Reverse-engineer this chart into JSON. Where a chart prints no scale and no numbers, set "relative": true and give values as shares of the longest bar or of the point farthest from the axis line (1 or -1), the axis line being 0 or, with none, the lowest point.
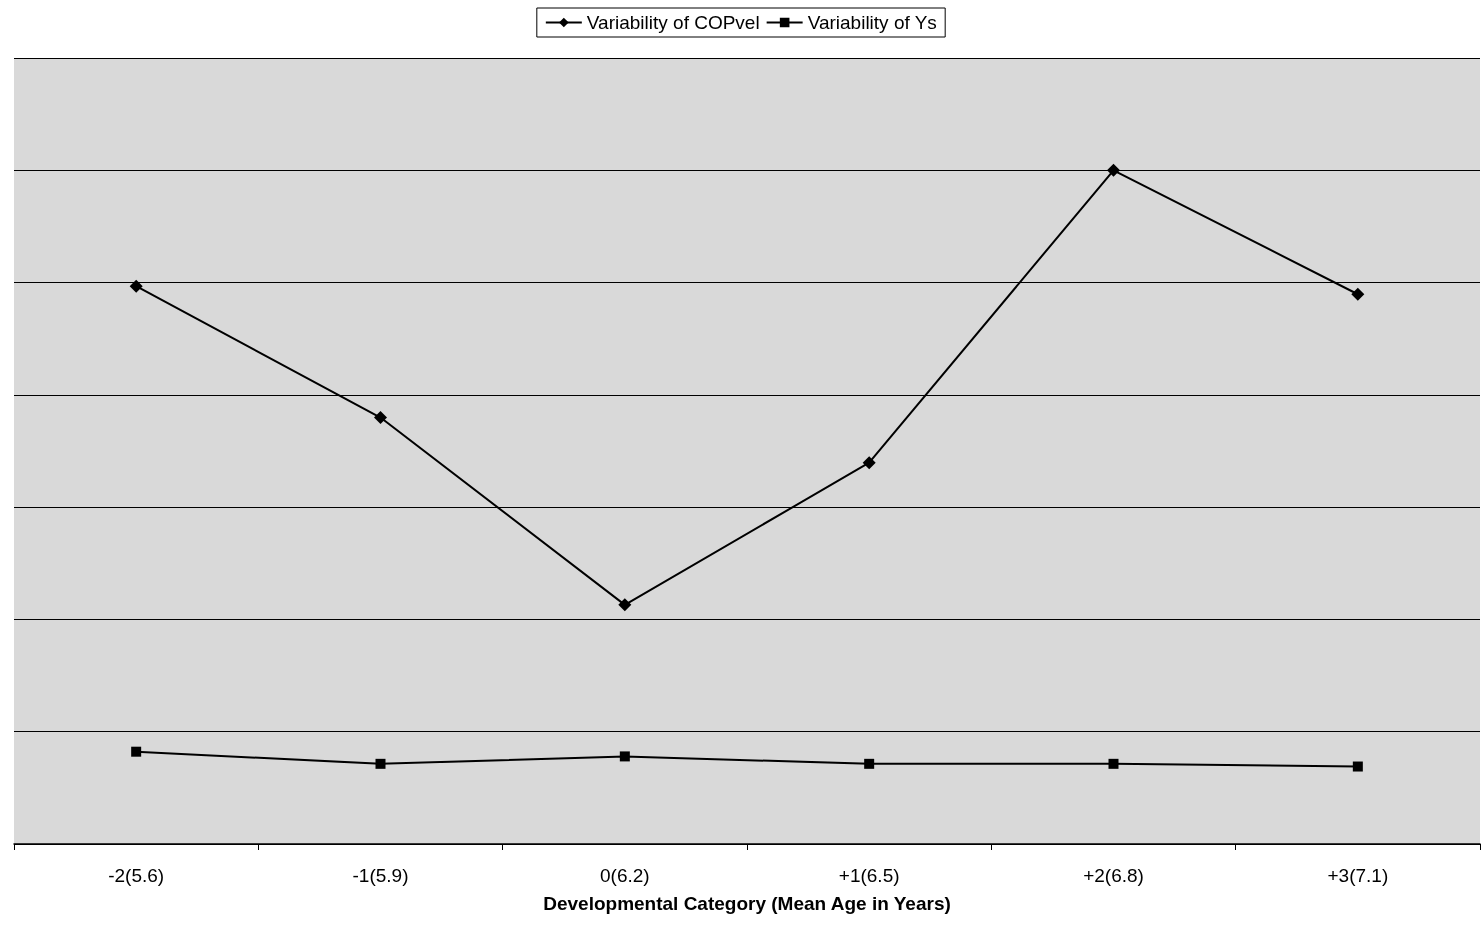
{
  "chart_data": {
    "type": "line",
    "relative": true,
    "xlabel": "Developmental Category (Mean Age in Years)",
    "categories": [
      "-2(5.6)",
      "-1(5.9)",
      "0(6.2)",
      "+1(6.5)",
      "+2(6.8)",
      "+3(7.1)"
    ],
    "series": [
      {
        "name": "Variability of COPvel",
        "color": "#000000",
        "marker": "diamond",
        "values": [
          0.828,
          0.633,
          0.355,
          0.566,
          1,
          0.816
        ]
      },
      {
        "name": "Variability of Ys",
        "color": "#000000",
        "marker": "square",
        "values": [
          0.137,
          0.119,
          0.13,
          0.119,
          0.119,
          0.115
        ]
      }
    ],
    "grid": "y",
    "legend": "top",
    "line_style": "solid"
  }
}
